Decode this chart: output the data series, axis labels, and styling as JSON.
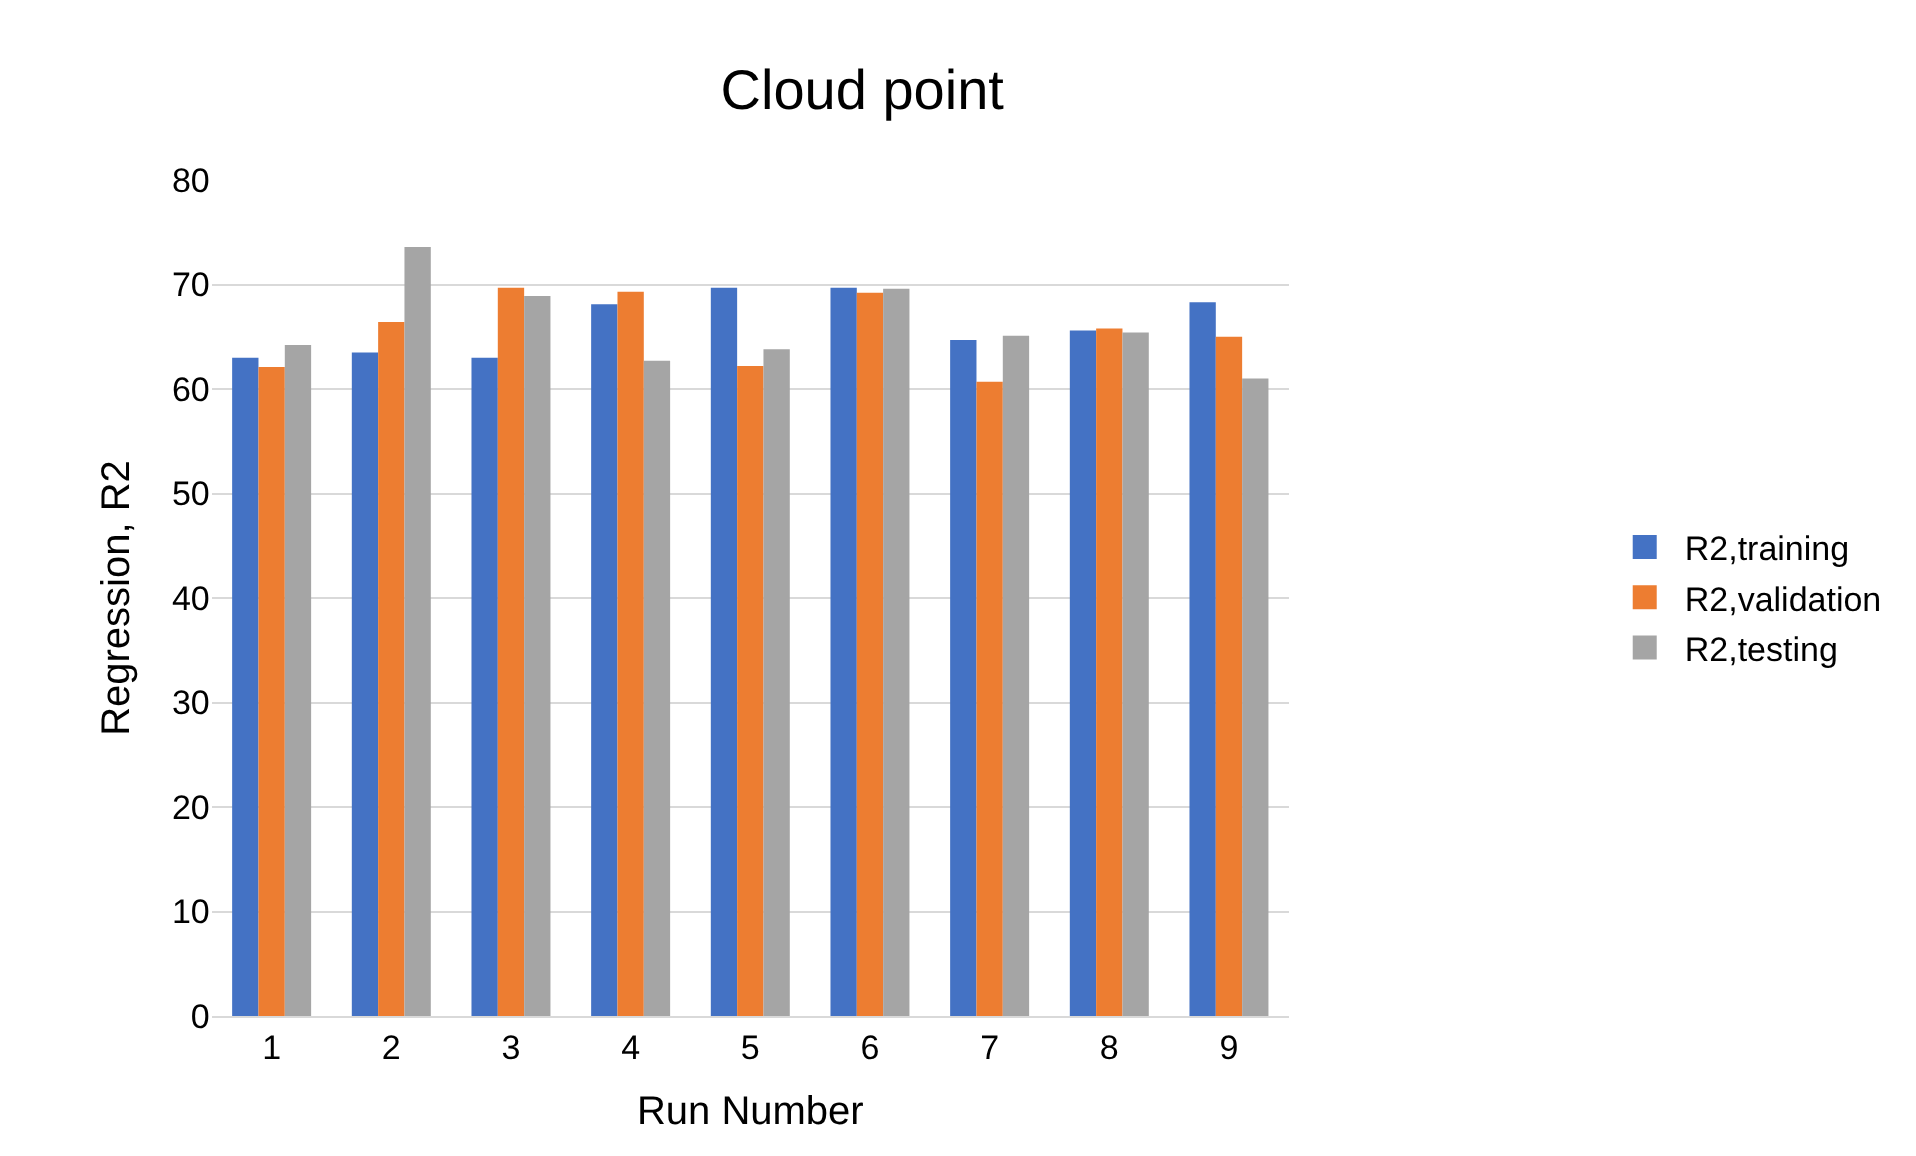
{
  "chart_data": {
    "type": "bar",
    "title": "Cloud point",
    "xlabel": "Run Number",
    "ylabel": "Regression, R2",
    "categories": [
      "1",
      "2",
      "3",
      "4",
      "5",
      "6",
      "7",
      "8",
      "9"
    ],
    "series": [
      {
        "name": "R2,training",
        "color": "#4472c4",
        "values": [
          63.0,
          63.5,
          63.0,
          68.1,
          69.7,
          69.7,
          64.7,
          65.6,
          68.3
        ]
      },
      {
        "name": "R2,validation",
        "color": "#ed7d31",
        "values": [
          62.1,
          66.4,
          69.7,
          69.3,
          62.2,
          69.2,
          60.7,
          65.8,
          65.0
        ]
      },
      {
        "name": "R2,testing",
        "color": "#a5a5a5",
        "values": [
          64.2,
          73.6,
          68.9,
          62.7,
          63.8,
          69.6,
          65.1,
          65.4,
          61.0
        ]
      }
    ],
    "ylim": [
      0,
      80
    ],
    "yticks": [
      0,
      10,
      20,
      30,
      40,
      50,
      60,
      70,
      80
    ],
    "grid": "y",
    "legend": "right"
  }
}
